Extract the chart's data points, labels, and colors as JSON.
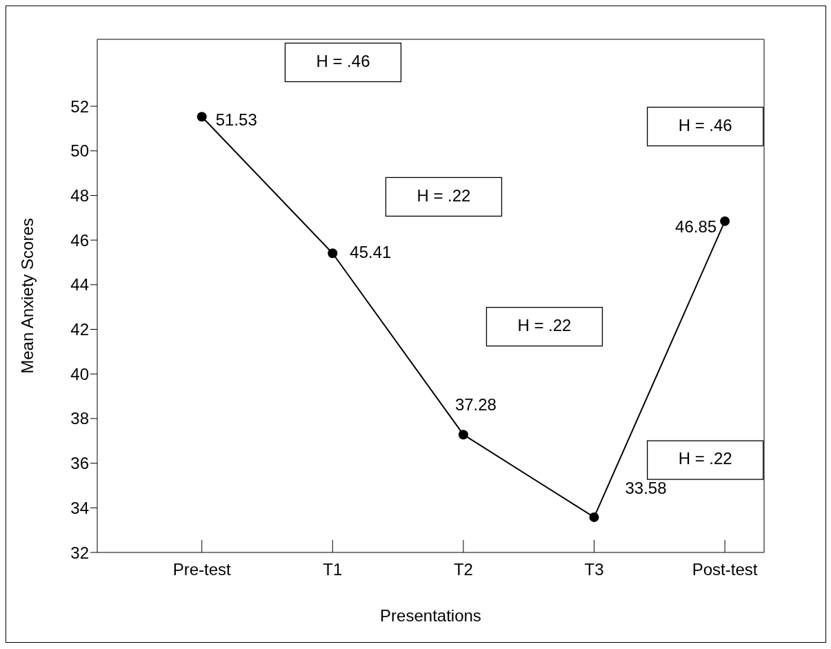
{
  "chart_data": {
    "type": "line",
    "xlabel": "Presentations",
    "ylabel": "Mean Anxiety Scores",
    "categories": [
      "Pre-test",
      "T1",
      "T2",
      "T3",
      "Post-test"
    ],
    "series": [
      {
        "color": "#000000",
        "values": [
          51.53,
          45.41,
          37.28,
          33.58,
          46.85
        ]
      }
    ],
    "data_labels": true,
    "marker": "circle",
    "line_style": "solid",
    "grid": false,
    "legend": false,
    "ylim": [
      32,
      55
    ],
    "yticks": [
      32,
      34,
      36,
      38,
      40,
      42,
      44,
      46,
      48,
      50,
      52
    ],
    "annotations": [
      "H = .46",
      "H = .22",
      "H = .22",
      "H = .22",
      "H = .46"
    ]
  }
}
